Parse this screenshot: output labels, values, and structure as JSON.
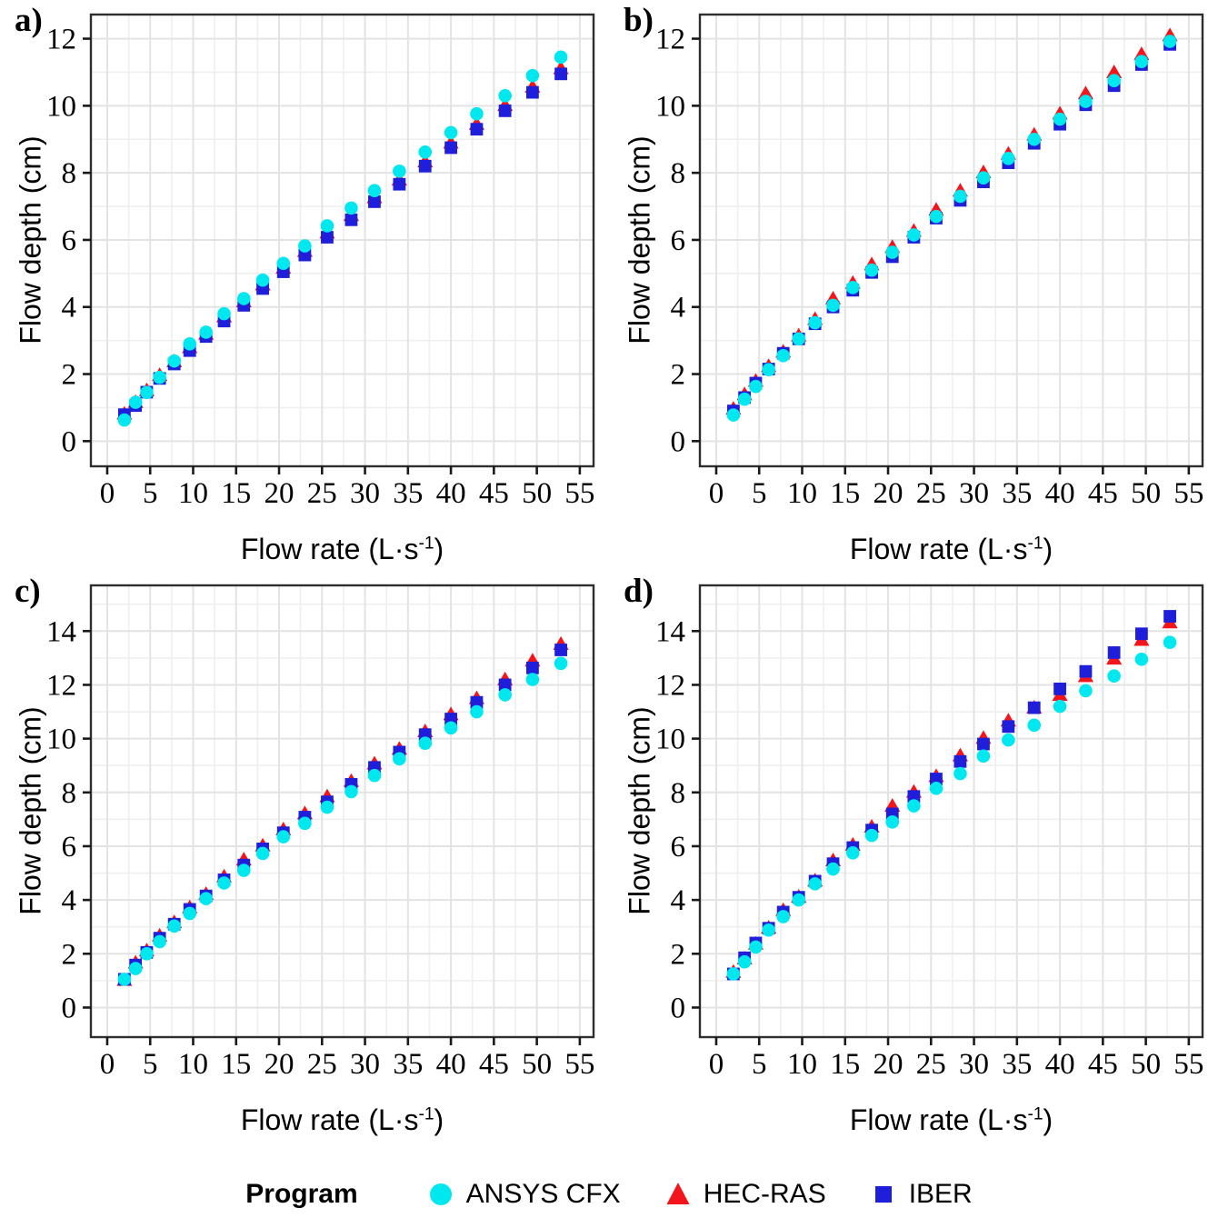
{
  "figure": {
    "description_title": "",
    "background": "#ffffff"
  },
  "axis": {
    "x_label_base": "Flow rate (L·s",
    "x_label_sup": "-1",
    "x_label_close": ")",
    "y_label": "Flow depth (cm)"
  },
  "legend": {
    "title": "Program",
    "items": [
      {
        "label": "ANSYS CFX",
        "marker": "circle",
        "color": "#00e8ef"
      },
      {
        "label": "HEC-RAS",
        "marker": "triangle",
        "color": "#f2151c"
      },
      {
        "label": "IBER",
        "marker": "square",
        "color": "#1e1edb"
      }
    ]
  },
  "style": {
    "border_color": "#2e2e2e",
    "tick_color": "#1a1a1a",
    "text_color": "#000000",
    "grid_major_color": "#e3e3e3",
    "grid_minor_color": "#efefef",
    "z_order": [
      "HEC-RAS",
      "IBER",
      "ANSYS CFX"
    ]
  },
  "chart_data": [
    {
      "id": "a",
      "label": "a)",
      "type": "scatter",
      "xlabel": "Flow rate (L·s⁻¹)",
      "ylabel": "Flow depth (cm)",
      "xlim": [
        -1.9,
        56.6
      ],
      "ylim": [
        -0.75,
        12.72
      ],
      "xticks": [
        0,
        5,
        10,
        15,
        20,
        25,
        30,
        35,
        40,
        45,
        50,
        55
      ],
      "yticks": [
        0,
        2,
        4,
        6,
        8,
        10,
        12
      ],
      "grid": true,
      "legend_position": "bottom",
      "x": [
        2.0,
        3.3,
        4.6,
        6.1,
        7.8,
        9.6,
        11.5,
        13.6,
        15.9,
        18.1,
        20.5,
        23.0,
        25.6,
        28.4,
        31.1,
        34.0,
        37.0,
        40.0,
        43.0,
        46.3,
        49.5,
        52.8
      ],
      "series": [
        {
          "name": "ANSYS CFX",
          "marker": "circle",
          "color": "#00e8ef",
          "values": [
            0.63,
            1.16,
            1.45,
            1.9,
            2.39,
            2.9,
            3.25,
            3.8,
            4.25,
            4.8,
            5.3,
            5.82,
            6.42,
            6.95,
            7.47,
            8.05,
            8.62,
            9.2,
            9.76,
            10.3,
            10.9,
            11.45
          ]
        },
        {
          "name": "HEC-RAS",
          "marker": "triangle",
          "color": "#f2151c",
          "values": [
            0.8,
            1.15,
            1.5,
            1.95,
            2.36,
            2.78,
            3.18,
            3.7,
            4.15,
            4.65,
            5.15,
            5.65,
            6.2,
            6.72,
            7.25,
            7.78,
            8.32,
            8.88,
            9.44,
            10.0,
            10.55,
            11.1
          ]
        },
        {
          "name": "IBER",
          "marker": "square",
          "color": "#1e1edb",
          "values": [
            0.79,
            1.06,
            1.46,
            1.87,
            2.3,
            2.7,
            3.12,
            3.58,
            4.05,
            4.55,
            5.05,
            5.55,
            6.08,
            6.6,
            7.14,
            7.66,
            8.2,
            8.75,
            9.3,
            9.85,
            10.4,
            10.95
          ]
        }
      ]
    },
    {
      "id": "b",
      "label": "b)",
      "type": "scatter",
      "xlabel": "Flow rate (L·s⁻¹)",
      "ylabel": "Flow depth (cm)",
      "xlim": [
        -1.9,
        56.6
      ],
      "ylim": [
        -0.75,
        12.72
      ],
      "xticks": [
        0,
        5,
        10,
        15,
        20,
        25,
        30,
        35,
        40,
        45,
        50,
        55
      ],
      "yticks": [
        0,
        2,
        4,
        6,
        8,
        10,
        12
      ],
      "grid": true,
      "legend_position": "bottom",
      "x": [
        2.0,
        3.3,
        4.6,
        6.1,
        7.8,
        9.6,
        11.5,
        13.6,
        15.9,
        18.1,
        20.5,
        23.0,
        25.6,
        28.4,
        31.1,
        34.0,
        37.0,
        40.0,
        43.0,
        46.3,
        49.5,
        52.8
      ],
      "series": [
        {
          "name": "ANSYS CFX",
          "marker": "circle",
          "color": "#00e8ef",
          "values": [
            0.78,
            1.25,
            1.63,
            2.13,
            2.55,
            3.05,
            3.53,
            4.05,
            4.58,
            5.1,
            5.63,
            6.15,
            6.7,
            7.3,
            7.85,
            8.43,
            9.0,
            9.6,
            10.13,
            10.75,
            11.32,
            11.92
          ]
        },
        {
          "name": "HEC-RAS",
          "marker": "triangle",
          "color": "#f2151c",
          "values": [
            0.95,
            1.38,
            1.78,
            2.22,
            2.65,
            3.13,
            3.62,
            4.23,
            4.7,
            5.25,
            5.77,
            6.25,
            6.88,
            7.45,
            8.0,
            8.55,
            9.12,
            9.75,
            10.35,
            10.98,
            11.52,
            12.08
          ]
        },
        {
          "name": "IBER",
          "marker": "square",
          "color": "#1e1edb",
          "values": [
            0.9,
            1.3,
            1.73,
            2.15,
            2.62,
            3.05,
            3.5,
            4.0,
            4.5,
            5.03,
            5.5,
            6.08,
            6.65,
            7.18,
            7.73,
            8.3,
            8.88,
            9.45,
            10.03,
            10.6,
            11.23,
            11.83
          ]
        }
      ]
    },
    {
      "id": "c",
      "label": "c)",
      "type": "scatter",
      "xlabel": "Flow rate (L·s⁻¹)",
      "ylabel": "Flow depth (cm)",
      "xlim": [
        -1.9,
        56.6
      ],
      "ylim": [
        -1.1,
        15.7
      ],
      "xticks": [
        0,
        5,
        10,
        15,
        20,
        25,
        30,
        35,
        40,
        45,
        50,
        55
      ],
      "yticks": [
        0,
        2,
        4,
        6,
        8,
        10,
        12,
        14
      ],
      "grid": true,
      "legend_position": "bottom",
      "x": [
        2.0,
        3.3,
        4.6,
        6.1,
        7.8,
        9.6,
        11.5,
        13.6,
        15.9,
        18.1,
        20.5,
        23.0,
        25.6,
        28.4,
        31.1,
        34.0,
        37.0,
        40.0,
        43.0,
        46.3,
        49.5,
        52.8
      ],
      "series": [
        {
          "name": "ANSYS CFX",
          "marker": "circle",
          "color": "#00e8ef",
          "values": [
            1.05,
            1.45,
            2.0,
            2.45,
            3.03,
            3.5,
            4.05,
            4.63,
            5.1,
            5.73,
            6.35,
            6.85,
            7.45,
            8.03,
            8.63,
            9.25,
            9.83,
            10.4,
            11.0,
            11.63,
            12.2,
            12.8
          ]
        },
        {
          "name": "HEC-RAS",
          "marker": "triangle",
          "color": "#f2151c",
          "values": [
            1.0,
            1.65,
            2.1,
            2.65,
            3.15,
            3.7,
            4.2,
            4.85,
            5.48,
            6.0,
            6.6,
            7.2,
            7.83,
            8.4,
            9.05,
            9.6,
            10.25,
            10.88,
            11.48,
            12.18,
            12.88,
            13.5
          ]
        },
        {
          "name": "IBER",
          "marker": "square",
          "color": "#1e1edb",
          "values": [
            1.05,
            1.58,
            2.05,
            2.58,
            3.1,
            3.65,
            4.15,
            4.75,
            5.3,
            5.9,
            6.5,
            7.08,
            7.65,
            8.3,
            8.93,
            9.5,
            10.15,
            10.73,
            11.35,
            12.0,
            12.63,
            13.3
          ]
        }
      ]
    },
    {
      "id": "d",
      "label": "d)",
      "type": "scatter",
      "xlabel": "Flow rate (L·s⁻¹)",
      "ylabel": "Flow depth (cm)",
      "xlim": [
        -1.9,
        56.6
      ],
      "ylim": [
        -1.1,
        15.7
      ],
      "xticks": [
        0,
        5,
        10,
        15,
        20,
        25,
        30,
        35,
        40,
        45,
        50,
        55
      ],
      "yticks": [
        0,
        2,
        4,
        6,
        8,
        10,
        12,
        14
      ],
      "grid": true,
      "legend_position": "bottom",
      "x": [
        2.0,
        3.3,
        4.6,
        6.1,
        7.8,
        9.6,
        11.5,
        13.6,
        15.9,
        18.1,
        20.5,
        23.0,
        25.6,
        28.4,
        31.1,
        34.0,
        37.0,
        40.0,
        43.0,
        46.3,
        49.5,
        52.8
      ],
      "series": [
        {
          "name": "ANSYS CFX",
          "marker": "circle",
          "color": "#00e8ef",
          "values": [
            1.25,
            1.7,
            2.25,
            2.88,
            3.38,
            4.0,
            4.6,
            5.15,
            5.75,
            6.4,
            6.9,
            7.5,
            8.15,
            8.7,
            9.35,
            9.95,
            10.5,
            11.2,
            11.78,
            12.33,
            12.95,
            13.58
          ]
        },
        {
          "name": "HEC-RAS",
          "marker": "triangle",
          "color": "#f2151c",
          "values": [
            1.3,
            1.8,
            2.35,
            2.95,
            3.6,
            4.1,
            4.7,
            5.45,
            6.03,
            6.7,
            7.48,
            8.0,
            8.58,
            9.35,
            10.0,
            10.65,
            11.13,
            11.6,
            12.3,
            12.95,
            13.65,
            14.3
          ]
        },
        {
          "name": "IBER",
          "marker": "square",
          "color": "#1e1edb",
          "values": [
            1.25,
            1.85,
            2.4,
            2.95,
            3.55,
            4.1,
            4.7,
            5.35,
            5.95,
            6.6,
            7.2,
            7.85,
            8.5,
            9.15,
            9.8,
            10.45,
            11.15,
            11.85,
            12.5,
            13.2,
            13.9,
            14.55
          ]
        }
      ]
    }
  ]
}
